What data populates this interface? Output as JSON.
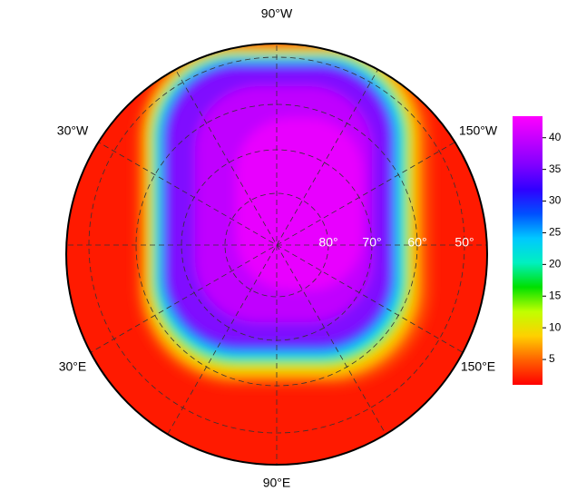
{
  "map": {
    "longitude_labels": [
      "90°W",
      "30°W",
      "150°W",
      "30°E",
      "150°E",
      "90°E"
    ],
    "latitude_labels": [
      "80°",
      "70°",
      "60°",
      "50°"
    ],
    "colorbar": {
      "range": [
        1,
        43.4
      ],
      "ticks": [
        5,
        10,
        15,
        20,
        25,
        30,
        35,
        40
      ],
      "colors": [
        "#ff0000",
        "#ff6000",
        "#ffd000",
        "#c0ff00",
        "#00e000",
        "#00f0c0",
        "#00c8ff",
        "#0050ff",
        "#3000ff",
        "#8000ff",
        "#c000ff",
        "#ff00ff"
      ]
    }
  }
}
